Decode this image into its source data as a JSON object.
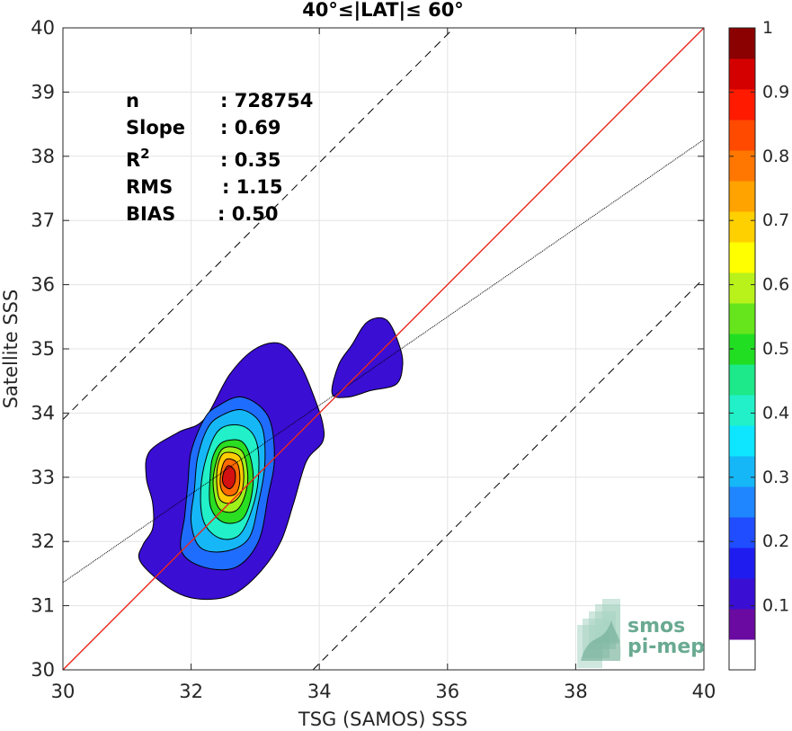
{
  "chart_data": {
    "type": "contour-density",
    "title": "40°≤|LAT|≤ 60°",
    "xlabel": "TSG (SAMOS) SSS",
    "ylabel": "Satellite SSS",
    "xlim": [
      30,
      40
    ],
    "ylim": [
      30,
      40
    ],
    "xticks": [
      "30",
      "32",
      "34",
      "36",
      "38",
      "40"
    ],
    "yticks": [
      "30",
      "31",
      "32",
      "33",
      "34",
      "35",
      "36",
      "37",
      "38",
      "39",
      "40"
    ],
    "grid": true,
    "stats": [
      {
        "label": "n",
        "value": ": 728754"
      },
      {
        "label": "Slope",
        "value": ": 0.69"
      },
      {
        "label": "R",
        "sup": "2",
        "value": ": 0.35"
      },
      {
        "label": "RMS",
        "value": ": 1.15"
      },
      {
        "label": "BIAS",
        "value": ": 0.50"
      }
    ],
    "lines": {
      "identity": {
        "slope": 1,
        "intercept": 0,
        "color": "#e8281e"
      },
      "fit": {
        "slope": 0.69,
        "intercept": 10.66,
        "color": "#000000"
      },
      "upper_bound": {
        "slope": 1,
        "intercept": 3.9,
        "color": "#000000"
      },
      "lower_bound": {
        "slope": 1,
        "intercept": -3.9,
        "color": "#000000"
      }
    },
    "density_peak": {
      "x": 32.55,
      "y": 33.0
    },
    "contour_levels": [
      0.05,
      0.15,
      0.25,
      0.35,
      0.45,
      0.55,
      0.65,
      0.75,
      0.85,
      0.95
    ],
    "contours": [
      {
        "level": 0.1,
        "color": "#3a0ed3",
        "points": [
          [
            32.2,
            33.9
          ],
          [
            32.6,
            34.6
          ],
          [
            33.0,
            35.0
          ],
          [
            33.4,
            35.08
          ],
          [
            33.7,
            34.75
          ],
          [
            33.9,
            34.3
          ],
          [
            34.05,
            33.85
          ],
          [
            34.05,
            33.55
          ],
          [
            33.8,
            33.25
          ],
          [
            33.6,
            32.6
          ],
          [
            33.4,
            32.0
          ],
          [
            33.1,
            31.55
          ],
          [
            32.7,
            31.2
          ],
          [
            32.3,
            31.1
          ],
          [
            31.9,
            31.15
          ],
          [
            31.55,
            31.35
          ],
          [
            31.2,
            31.7
          ],
          [
            31.25,
            31.95
          ],
          [
            31.4,
            32.2
          ],
          [
            31.4,
            32.6
          ],
          [
            31.3,
            33.0
          ],
          [
            31.35,
            33.4
          ],
          [
            31.8,
            33.7
          ]
        ]
      },
      {
        "level": 0.1,
        "color": "#3a0ed3",
        "points": [
          [
            34.2,
            34.3
          ],
          [
            34.3,
            34.75
          ],
          [
            34.5,
            35.05
          ],
          [
            34.75,
            35.42
          ],
          [
            35.05,
            35.45
          ],
          [
            35.25,
            35.05
          ],
          [
            35.3,
            34.75
          ],
          [
            35.2,
            34.45
          ],
          [
            34.8,
            34.35
          ],
          [
            34.45,
            34.25
          ]
        ]
      },
      {
        "level": 0.2,
        "color": "#1f6dff",
        "points": [
          [
            32.4,
            34.1
          ],
          [
            32.8,
            34.25
          ],
          [
            33.2,
            33.95
          ],
          [
            33.3,
            33.3
          ],
          [
            33.2,
            32.7
          ],
          [
            33.05,
            32.0
          ],
          [
            32.7,
            31.6
          ],
          [
            32.2,
            31.6
          ],
          [
            31.85,
            31.85
          ],
          [
            31.9,
            32.4
          ],
          [
            31.95,
            32.9
          ],
          [
            32.0,
            33.4
          ],
          [
            32.2,
            33.9
          ]
        ]
      },
      {
        "level": 0.3,
        "color": "#16b7f7",
        "points": [
          [
            32.45,
            33.95
          ],
          [
            32.8,
            34.05
          ],
          [
            33.1,
            33.8
          ],
          [
            33.15,
            33.2
          ],
          [
            33.05,
            32.6
          ],
          [
            32.9,
            32.05
          ],
          [
            32.55,
            31.85
          ],
          [
            32.15,
            31.9
          ],
          [
            32.0,
            32.3
          ],
          [
            32.05,
            32.8
          ],
          [
            32.1,
            33.3
          ],
          [
            32.25,
            33.75
          ]
        ]
      },
      {
        "level": 0.4,
        "color": "#21f0c8",
        "points": [
          [
            32.45,
            33.75
          ],
          [
            32.8,
            33.8
          ],
          [
            33.02,
            33.55
          ],
          [
            33.05,
            33.0
          ],
          [
            32.95,
            32.5
          ],
          [
            32.75,
            32.1
          ],
          [
            32.45,
            32.05
          ],
          [
            32.2,
            32.3
          ],
          [
            32.15,
            32.8
          ],
          [
            32.25,
            33.35
          ]
        ]
      },
      {
        "level": 0.5,
        "color": "#2ade22",
        "points": [
          [
            32.5,
            33.55
          ],
          [
            32.8,
            33.55
          ],
          [
            32.95,
            33.2
          ],
          [
            32.95,
            32.75
          ],
          [
            32.8,
            32.35
          ],
          [
            32.5,
            32.3
          ],
          [
            32.3,
            32.55
          ],
          [
            32.3,
            33.05
          ],
          [
            32.35,
            33.35
          ]
        ]
      },
      {
        "level": 0.6,
        "color": "#9ef01a",
        "points": [
          [
            32.5,
            33.45
          ],
          [
            32.78,
            33.42
          ],
          [
            32.88,
            33.1
          ],
          [
            32.85,
            32.75
          ],
          [
            32.7,
            32.48
          ],
          [
            32.45,
            32.5
          ],
          [
            32.35,
            32.8
          ],
          [
            32.37,
            33.15
          ]
        ]
      },
      {
        "level": 0.7,
        "color": "#ffcc00",
        "points": [
          [
            32.52,
            33.38
          ],
          [
            32.75,
            33.33
          ],
          [
            32.82,
            33.05
          ],
          [
            32.78,
            32.75
          ],
          [
            32.62,
            32.6
          ],
          [
            32.45,
            32.65
          ],
          [
            32.4,
            32.9
          ],
          [
            32.42,
            33.2
          ]
        ]
      },
      {
        "level": 0.8,
        "color": "#ff6a00",
        "points": [
          [
            32.55,
            33.28
          ],
          [
            32.72,
            33.22
          ],
          [
            32.76,
            32.95
          ],
          [
            32.7,
            32.75
          ],
          [
            32.55,
            32.72
          ],
          [
            32.46,
            32.85
          ],
          [
            32.47,
            33.1
          ]
        ]
      },
      {
        "level": 0.9,
        "color": "#d41010",
        "points": [
          [
            32.58,
            33.18
          ],
          [
            32.68,
            33.1
          ],
          [
            32.68,
            32.92
          ],
          [
            32.6,
            32.82
          ],
          [
            32.5,
            32.9
          ],
          [
            32.5,
            33.05
          ]
        ]
      }
    ],
    "colorbar": {
      "range": [
        0,
        1
      ],
      "ticks": [
        "0.1",
        "0.2",
        "0.3",
        "0.4",
        "0.5",
        "0.6",
        "0.7",
        "0.8",
        "0.9",
        "1"
      ],
      "colors": [
        "#ffffff",
        "#6a0aa0",
        "#3a0ed3",
        "#1f1cf0",
        "#1f4dff",
        "#1f86ff",
        "#16b7f7",
        "#0ee6ff",
        "#21f0c8",
        "#1de88a",
        "#22de22",
        "#66e51c",
        "#b8f21a",
        "#ffff00",
        "#ffd000",
        "#ffa300",
        "#ff7700",
        "#ff4a00",
        "#ff1a00",
        "#d40000",
        "#8b0000"
      ]
    }
  },
  "logo": {
    "line1": "smos",
    "line2": "pi-mep"
  }
}
